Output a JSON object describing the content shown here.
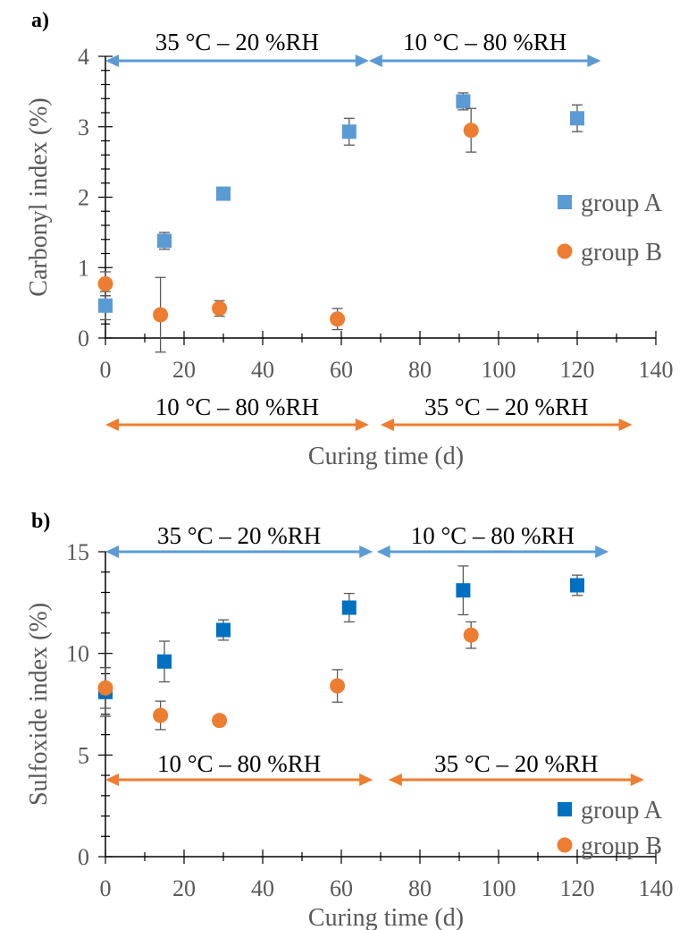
{
  "chart_data": [
    {
      "type": "scatter",
      "panel_label": "a)",
      "xlabel": "Curing time (d)",
      "ylabel": "Carbonyl index (%)",
      "xlim": [
        0,
        140
      ],
      "ylim": [
        0,
        4
      ],
      "x_ticks": [
        "0",
        "20",
        "40",
        "60",
        "80",
        "100",
        "120",
        "140"
      ],
      "y_ticks": [
        "0",
        "1",
        "2",
        "3",
        "4"
      ],
      "legend_position": "right",
      "series": [
        {
          "name": "group A",
          "marker": "square",
          "color": "#5b9bd5",
          "points": [
            {
              "x": 0,
              "y": 0.46,
              "err": 0.2
            },
            {
              "x": 15,
              "y": 1.38,
              "err": 0.12
            },
            {
              "x": 30,
              "y": 2.05,
              "err": 0.06
            },
            {
              "x": 62,
              "y": 2.93,
              "err": 0.19
            },
            {
              "x": 91,
              "y": 3.36,
              "err": 0.12
            },
            {
              "x": 120,
              "y": 3.12,
              "err": 0.19
            }
          ]
        },
        {
          "name": "group B",
          "marker": "circle",
          "color": "#ed7d31",
          "points": [
            {
              "x": 0,
              "y": 0.77,
              "err": 0.17
            },
            {
              "x": 14,
              "y": 0.33,
              "err": 0.53
            },
            {
              "x": 29,
              "y": 0.42,
              "err": 0.11
            },
            {
              "x": 59,
              "y": 0.27,
              "err": 0.15
            },
            {
              "x": 93,
              "y": 2.95,
              "err": 0.31
            }
          ]
        }
      ],
      "condition_arrows": [
        {
          "label": "35 °C – 20 %RH",
          "color": "#5b9bd5",
          "x_start": 0,
          "x_end": 67,
          "position": "top"
        },
        {
          "label": "10 °C – 80 %RH",
          "color": "#5b9bd5",
          "x_start": 67,
          "x_end": 126,
          "position": "top"
        },
        {
          "label": "10 °C – 80 %RH",
          "color": "#ed7d31",
          "x_start": 0,
          "x_end": 67,
          "position": "below-axis"
        },
        {
          "label": "35 °C – 20 %RH",
          "color": "#ed7d31",
          "x_start": 70,
          "x_end": 134,
          "position": "below-axis"
        }
      ]
    },
    {
      "type": "scatter",
      "panel_label": "b)",
      "xlabel": "Curing time (d)",
      "ylabel": "Sulfoxide index (%)",
      "xlim": [
        0,
        140
      ],
      "ylim": [
        0,
        15
      ],
      "x_ticks": [
        "0",
        "20",
        "40",
        "60",
        "80",
        "100",
        "120",
        "140"
      ],
      "y_ticks": [
        "0",
        "5",
        "10",
        "15"
      ],
      "legend_position": "bottom-right",
      "series": [
        {
          "name": "group A",
          "marker": "square",
          "color": "#0070c0",
          "points": [
            {
              "x": 0,
              "y": 8.1,
              "err": 1.2
            },
            {
              "x": 15,
              "y": 9.6,
              "err": 1.0
            },
            {
              "x": 30,
              "y": 11.15,
              "err": 0.5
            },
            {
              "x": 62,
              "y": 12.25,
              "err": 0.7
            },
            {
              "x": 91,
              "y": 13.1,
              "err": 1.2
            },
            {
              "x": 120,
              "y": 13.35,
              "err": 0.5
            }
          ]
        },
        {
          "name": "group B",
          "marker": "circle",
          "color": "#ed7d31",
          "points": [
            {
              "x": 0,
              "y": 8.3,
              "err": 1.0
            },
            {
              "x": 14,
              "y": 6.95,
              "err": 0.7
            },
            {
              "x": 29,
              "y": 6.7,
              "err": 0.2
            },
            {
              "x": 59,
              "y": 8.4,
              "err": 0.8
            },
            {
              "x": 93,
              "y": 10.9,
              "err": 0.65
            }
          ]
        }
      ],
      "condition_arrows": [
        {
          "label": "35 °C – 20 %RH",
          "color": "#5b9bd5",
          "x_start": 0,
          "x_end": 68,
          "position": "top"
        },
        {
          "label": "10 °C – 80 %RH",
          "color": "#5b9bd5",
          "x_start": 69,
          "x_end": 128,
          "position": "top"
        },
        {
          "label": "10 °C – 80 %RH",
          "color": "#ed7d31",
          "x_start": 0,
          "x_end": 68,
          "position": "inside-low"
        },
        {
          "label": "35 °C – 20 %RH",
          "color": "#ed7d31",
          "x_start": 72,
          "x_end": 137,
          "position": "inside-low"
        }
      ]
    }
  ]
}
